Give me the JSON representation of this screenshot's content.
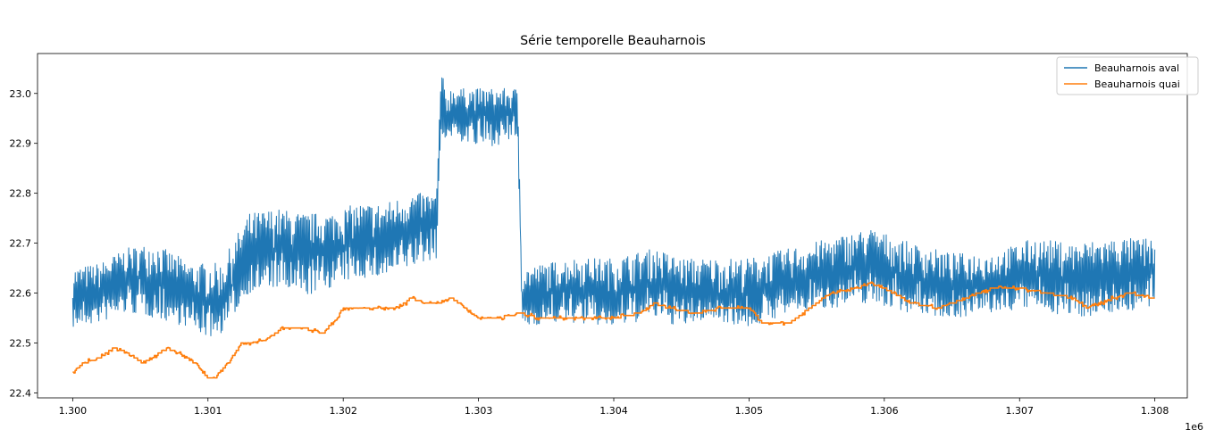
{
  "chart_data": {
    "type": "line",
    "title": "Série temporelle Beauharnois",
    "xlabel": "",
    "ylabel": "",
    "x_offset_label": "1e6",
    "xlim": [
      1299740,
      1308240
    ],
    "ylim": [
      22.39,
      23.08
    ],
    "x_ticks": [
      1300000,
      1301000,
      1302000,
      1303000,
      1304000,
      1305000,
      1306000,
      1307000,
      1308000
    ],
    "x_tick_labels": [
      "1.300",
      "1.301",
      "1.302",
      "1.303",
      "1.304",
      "1.305",
      "1.306",
      "1.307",
      "1.308"
    ],
    "y_ticks": [
      22.4,
      22.5,
      22.6,
      22.7,
      22.8,
      22.9,
      23.0
    ],
    "y_tick_labels": [
      "22.4",
      "22.5",
      "22.6",
      "22.7",
      "22.8",
      "22.9",
      "23.0"
    ],
    "grid": false,
    "legend_position": "top-right",
    "series": [
      {
        "name": "Beauharnois aval",
        "color": "#1f77b4",
        "band": true,
        "x": [
          1300000,
          1300200,
          1300400,
          1300600,
          1300880,
          1301000,
          1301100,
          1301300,
          1301500,
          1301700,
          1301900,
          1302100,
          1302300,
          1302500,
          1302690,
          1302720,
          1302760,
          1302800,
          1303000,
          1303200,
          1303290,
          1303320,
          1303500,
          1303700,
          1304000,
          1304300,
          1304500,
          1304700,
          1305000,
          1305300,
          1305600,
          1305900,
          1306200,
          1306500,
          1306800,
          1307100,
          1307400,
          1307700,
          1308000
        ],
        "mid": [
          22.59,
          22.6,
          22.63,
          22.63,
          22.59,
          22.58,
          22.58,
          22.67,
          22.69,
          22.68,
          22.69,
          22.7,
          22.7,
          22.73,
          22.74,
          22.93,
          22.93,
          22.97,
          22.96,
          22.96,
          22.96,
          22.59,
          22.6,
          22.61,
          22.6,
          22.62,
          22.6,
          22.6,
          22.6,
          22.62,
          22.64,
          22.66,
          22.63,
          22.61,
          22.62,
          22.64,
          22.63,
          22.64,
          22.64
        ],
        "low": [
          22.53,
          22.54,
          22.56,
          22.55,
          22.53,
          22.51,
          22.52,
          22.6,
          22.61,
          22.59,
          22.61,
          22.63,
          22.63,
          22.65,
          22.67,
          22.92,
          22.91,
          22.91,
          22.89,
          22.9,
          22.91,
          22.53,
          22.54,
          22.54,
          22.53,
          22.55,
          22.53,
          22.55,
          22.53,
          22.56,
          22.57,
          22.58,
          22.56,
          22.55,
          22.56,
          22.57,
          22.55,
          22.56,
          22.57
        ],
        "high": [
          22.65,
          22.66,
          22.69,
          22.7,
          22.66,
          22.66,
          22.66,
          22.76,
          22.77,
          22.76,
          22.76,
          22.78,
          22.78,
          22.8,
          22.8,
          23.05,
          23.01,
          23.01,
          23.01,
          23.01,
          23.01,
          22.65,
          22.66,
          22.67,
          22.67,
          22.69,
          22.67,
          22.67,
          22.67,
          22.69,
          22.71,
          22.73,
          22.7,
          22.68,
          22.68,
          22.71,
          22.7,
          22.71,
          22.71
        ]
      },
      {
        "name": "Beauharnois quai",
        "color": "#ff7f0e",
        "band": false,
        "x": [
          1300000,
          1300080,
          1300200,
          1300300,
          1300400,
          1300520,
          1300580,
          1300700,
          1300780,
          1300900,
          1301000,
          1301050,
          1301150,
          1301250,
          1301350,
          1301450,
          1301550,
          1301700,
          1301850,
          1301950,
          1302000,
          1302200,
          1302400,
          1302500,
          1302600,
          1302700,
          1302800,
          1302900,
          1303000,
          1303150,
          1303300,
          1303450,
          1303600,
          1303800,
          1304000,
          1304200,
          1304300,
          1304400,
          1304600,
          1304800,
          1305000,
          1305100,
          1305300,
          1305400,
          1305600,
          1305800,
          1305900,
          1306000,
          1306200,
          1306400,
          1306600,
          1306800,
          1307000,
          1307200,
          1307400,
          1307500,
          1307800,
          1308000
        ],
        "y": [
          22.44,
          22.46,
          22.47,
          22.49,
          22.48,
          22.46,
          22.47,
          22.49,
          22.48,
          22.46,
          22.43,
          22.43,
          22.46,
          22.5,
          22.5,
          22.51,
          22.53,
          22.53,
          22.52,
          22.55,
          22.57,
          22.57,
          22.57,
          22.59,
          22.58,
          22.58,
          22.59,
          22.57,
          22.55,
          22.55,
          22.56,
          22.55,
          22.55,
          22.55,
          22.55,
          22.56,
          22.58,
          22.57,
          22.56,
          22.57,
          22.57,
          22.54,
          22.54,
          22.56,
          22.6,
          22.61,
          22.62,
          22.61,
          22.58,
          22.57,
          22.59,
          22.61,
          22.61,
          22.6,
          22.59,
          22.57,
          22.6,
          22.59
        ]
      }
    ]
  }
}
